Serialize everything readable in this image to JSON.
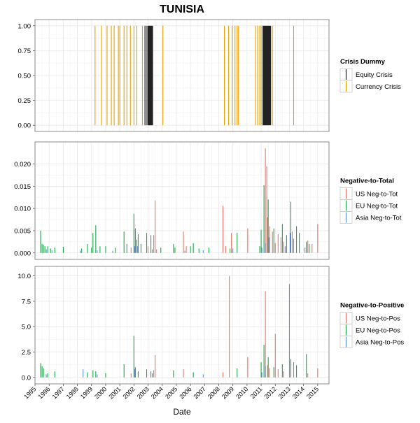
{
  "title": "TUNISIA",
  "colors": {
    "equity": "#222222",
    "currency": "#E69F00",
    "us": "#E8756B",
    "eu": "#1AA64A",
    "asia": "#5B8FD6",
    "grid": "#e8e8e8",
    "frame": "#7f7f7f"
  },
  "chart_data": [
    {
      "type": "bar",
      "panel": "crisis",
      "xlabel": "Date",
      "ylabel": "",
      "ylim": [
        0,
        1
      ],
      "yticks": [
        "0.00",
        "0.25",
        "0.50",
        "0.75",
        "1.00"
      ],
      "xlim": [
        1995.0,
        2015.8
      ],
      "xticks": [
        "1995",
        "1996",
        "1997",
        "1998",
        "1999",
        "2000",
        "2001",
        "2002",
        "2003",
        "2004",
        "2005",
        "2006",
        "2007",
        "2008",
        "2009",
        "2010",
        "2011",
        "2012",
        "2013",
        "2014",
        "2015"
      ],
      "grid": true,
      "legend": {
        "title": "Crisis Dummy",
        "position": "right",
        "entries": [
          {
            "label": "Equity Crisis",
            "color": "equity"
          },
          {
            "label": "Currency Crisis",
            "color": "currency"
          }
        ]
      },
      "series": [
        {
          "name": "Equity Crisis",
          "color": "equity",
          "intervals": [
            [
              2002.75,
              2002.8
            ],
            [
              2002.85,
              2002.9
            ],
            [
              2002.95,
              2003.35
            ],
            [
              2011.1,
              2011.7
            ]
          ]
        },
        {
          "name": "Currency Crisis",
          "color": "currency",
          "x": [
            1999.25,
            1999.7,
            2000.1,
            2000.4,
            2000.6,
            2000.9,
            2001.0,
            2001.3,
            2001.5,
            2001.75,
            2002.0,
            2002.2,
            2002.6,
            2004.05,
            2008.4,
            2008.7,
            2008.95,
            2009.15,
            2009.3,
            2009.4,
            2010.6,
            2010.75,
            2010.9,
            2011.0,
            2011.8,
            2013.3
          ]
        }
      ]
    },
    {
      "type": "bar",
      "panel": "neg-to-total",
      "ylabel": "",
      "ylim": [
        0,
        0.0235
      ],
      "yticks": [
        "0.000",
        "0.005",
        "0.010",
        "0.015",
        "0.020"
      ],
      "ytick_values": [
        0,
        0.005,
        0.01,
        0.015,
        0.02
      ],
      "grid": true,
      "legend": {
        "title": "Negative-to-Total",
        "position": "right",
        "entries": [
          {
            "label": "US Neg-to-Tot",
            "color": "us"
          },
          {
            "label": "EU Neg-to-Tot",
            "color": "eu"
          },
          {
            "label": "Asia Neg-to-Tot",
            "color": "asia"
          }
        ]
      },
      "series": [
        {
          "name": "US Neg-to-Tot",
          "color": "us",
          "x": [
            2001.8,
            2003.0,
            2003.4,
            2003.5,
            2003.6,
            2005.5,
            2005.7,
            2008.3,
            2008.5,
            2008.9,
            2010.05,
            2011.3,
            2011.4,
            2011.45,
            2011.6,
            2011.8,
            2012.0,
            2012.2,
            2012.4,
            2012.6,
            2013.2,
            2014.3,
            2014.6,
            2015.0
          ],
          "y": [
            0.0012,
            0.0015,
            0.004,
            0.0118,
            0.0008,
            0.0048,
            0.0015,
            0.0106,
            0.0015,
            0.0045,
            0.0055,
            0.0235,
            0.0195,
            0.008,
            0.006,
            0.0048,
            0.0022,
            0.0042,
            0.0035,
            0.0025,
            0.0048,
            0.0028,
            0.002,
            0.0065
          ]
        },
        {
          "name": "EU Neg-to-Tot",
          "color": "eu",
          "x": [
            1995.4,
            1995.5,
            1995.6,
            1995.7,
            1995.9,
            1996.1,
            1996.4,
            1997.0,
            1998.3,
            1998.7,
            1999.0,
            1999.1,
            1999.3,
            1999.6,
            2000.0,
            2000.7,
            2001.3,
            2001.5,
            2002.0,
            2002.1,
            2002.2,
            2002.3,
            2002.5,
            2002.9,
            2003.2,
            2003.9,
            2004.8,
            2004.9,
            2006.0,
            2006.2,
            2006.6,
            2007.3,
            2008.8,
            2009.3,
            2010.9,
            2011.0,
            2011.2,
            2011.5,
            2011.9,
            2012.5,
            2012.8,
            2013.1,
            2013.5,
            2013.7,
            2014.2,
            2014.4
          ],
          "y": [
            0.005,
            0.002,
            0.0018,
            0.0015,
            0.0015,
            0.001,
            0.0012,
            0.0014,
            0.001,
            0.002,
            0.0012,
            0.0045,
            0.0062,
            0.0015,
            0.0015,
            0.0012,
            0.0048,
            0.002,
            0.0088,
            0.0055,
            0.003,
            0.0042,
            0.002,
            0.0045,
            0.004,
            0.0012,
            0.002,
            0.0012,
            0.0015,
            0.0022,
            0.001,
            0.0012,
            0.001,
            0.0045,
            0.0015,
            0.0052,
            0.0152,
            0.012,
            0.0055,
            0.0065,
            0.004,
            0.0115,
            0.006,
            0.0045,
            0.0025,
            0.002
          ]
        },
        {
          "name": "Asia Neg-to-Tot",
          "color": "asia",
          "x": [
            1995.8,
            1996.2,
            1998.2,
            1999.4,
            2000.5,
            2002.05,
            2002.25,
            2003.3,
            2005.6,
            2006.9,
            2009.0,
            2011.05,
            2011.3,
            2011.55,
            2012.7,
            2013.05,
            2013.3,
            2014.1
          ],
          "y": [
            0.0008,
            0.0006,
            0.0005,
            0.0006,
            0.0005,
            0.0015,
            0.0015,
            0.0008,
            0.0005,
            0.0006,
            0.001,
            0.0012,
            0.0022,
            0.0035,
            0.0015,
            0.0045,
            0.0032,
            0.0012
          ]
        }
      ]
    },
    {
      "type": "bar",
      "panel": "neg-to-pos",
      "ylabel": "",
      "ylim": [
        0,
        10.3
      ],
      "yticks": [
        "0.0",
        "2.5",
        "5.0",
        "7.5",
        "10.0"
      ],
      "ytick_values": [
        0,
        2.5,
        5,
        7.5,
        10
      ],
      "grid": true,
      "legend": {
        "title": "Negative-to-Positive",
        "position": "right",
        "entries": [
          {
            "label": "US Neg-to-Pos",
            "color": "us"
          },
          {
            "label": "EU Neg-to-Pos",
            "color": "eu"
          },
          {
            "label": "Asia Neg-to-Pos",
            "color": "asia"
          }
        ]
      },
      "series": [
        {
          "name": "US Neg-to-Pos",
          "color": "us",
          "x": [
            2001.8,
            2003.4,
            2003.5,
            2005.5,
            2008.3,
            2008.75,
            2010.05,
            2011.3,
            2011.45,
            2011.6,
            2012.0,
            2012.2,
            2012.6,
            2014.3,
            2015.0
          ],
          "y": [
            0.4,
            0.7,
            2.2,
            0.8,
            0.5,
            10.0,
            2.0,
            8.5,
            1.2,
            0.9,
            4.3,
            0.8,
            0.6,
            0.4,
            0.9
          ]
        },
        {
          "name": "EU Neg-to-Pos",
          "color": "eu",
          "x": [
            1995.4,
            1995.5,
            1995.6,
            1995.9,
            1996.4,
            1998.7,
            1999.1,
            1999.3,
            2000.0,
            2001.3,
            2002.0,
            2002.1,
            2002.3,
            2002.9,
            2003.2,
            2004.8,
            2006.2,
            2009.3,
            2011.0,
            2011.2,
            2011.5,
            2011.9,
            2012.5,
            2013.1,
            2013.5,
            2014.2
          ],
          "y": [
            1.4,
            1.1,
            0.9,
            0.4,
            0.6,
            0.5,
            0.7,
            0.6,
            0.4,
            1.3,
            4.1,
            1.0,
            0.6,
            0.8,
            0.6,
            0.7,
            0.5,
            0.9,
            1.5,
            3.2,
            2.0,
            1.0,
            1.3,
            1.8,
            1.2,
            2.3
          ]
        },
        {
          "name": "Asia Neg-to-Pos",
          "color": "asia",
          "x": [
            1995.8,
            1998.4,
            1999.4,
            2002.05,
            2003.3,
            2006.9,
            2011.05,
            2011.3,
            2013.0,
            2013.3
          ],
          "y": [
            0.3,
            0.8,
            0.3,
            0.8,
            0.4,
            0.3,
            0.5,
            1.1,
            9.2,
            1.5
          ]
        }
      ]
    }
  ]
}
